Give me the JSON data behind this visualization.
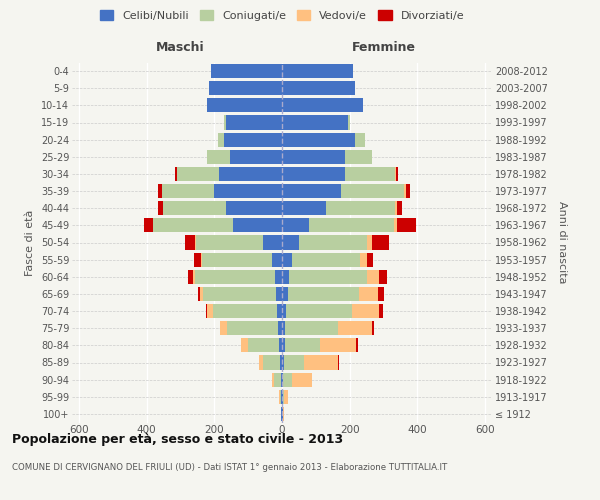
{
  "age_groups": [
    "100+",
    "95-99",
    "90-94",
    "85-89",
    "80-84",
    "75-79",
    "70-74",
    "65-69",
    "60-64",
    "55-59",
    "50-54",
    "45-49",
    "40-44",
    "35-39",
    "30-34",
    "25-29",
    "20-24",
    "15-19",
    "10-14",
    "5-9",
    "0-4"
  ],
  "birth_years": [
    "≤ 1912",
    "1913-1917",
    "1918-1922",
    "1923-1927",
    "1928-1932",
    "1933-1937",
    "1938-1942",
    "1943-1947",
    "1948-1952",
    "1953-1957",
    "1958-1962",
    "1963-1967",
    "1968-1972",
    "1973-1977",
    "1978-1982",
    "1983-1987",
    "1988-1992",
    "1993-1997",
    "1998-2002",
    "2003-2007",
    "2008-2012"
  ],
  "males": {
    "celibi": [
      2,
      2,
      4,
      6,
      10,
      12,
      15,
      18,
      22,
      30,
      55,
      145,
      165,
      200,
      185,
      155,
      170,
      165,
      220,
      215,
      210
    ],
    "coniugati": [
      2,
      5,
      20,
      50,
      90,
      150,
      190,
      215,
      235,
      205,
      200,
      235,
      185,
      155,
      125,
      65,
      20,
      5,
      0,
      0,
      0
    ],
    "vedovi": [
      0,
      2,
      5,
      12,
      20,
      20,
      15,
      8,
      5,
      5,
      2,
      2,
      0,
      0,
      0,
      0,
      0,
      0,
      0,
      0,
      0
    ],
    "divorziati": [
      0,
      0,
      0,
      0,
      2,
      2,
      5,
      8,
      15,
      20,
      30,
      25,
      15,
      10,
      5,
      0,
      0,
      0,
      0,
      0,
      0
    ]
  },
  "females": {
    "nubili": [
      2,
      2,
      4,
      6,
      8,
      10,
      12,
      18,
      22,
      30,
      50,
      80,
      130,
      175,
      185,
      185,
      215,
      195,
      240,
      215,
      210
    ],
    "coniugate": [
      2,
      5,
      25,
      60,
      105,
      155,
      195,
      210,
      230,
      200,
      200,
      250,
      205,
      185,
      150,
      80,
      30,
      5,
      0,
      0,
      0
    ],
    "vedove": [
      1,
      10,
      60,
      100,
      105,
      100,
      80,
      55,
      35,
      20,
      15,
      10,
      5,
      5,
      2,
      0,
      0,
      0,
      0,
      0,
      0
    ],
    "divorziate": [
      0,
      0,
      0,
      2,
      5,
      8,
      10,
      18,
      22,
      18,
      50,
      55,
      15,
      12,
      5,
      0,
      0,
      0,
      0,
      0,
      0
    ]
  },
  "colors": {
    "celibi": "#4472c4",
    "coniugati": "#b8cfa0",
    "vedovi": "#ffc080",
    "divorziati": "#cc0000"
  },
  "xlim": 620,
  "title": "Popolazione per età, sesso e stato civile - 2013",
  "subtitle": "COMUNE DI CERVIGNANO DEL FRIULI (UD) - Dati ISTAT 1° gennaio 2013 - Elaborazione TUTTITALIA.IT",
  "xlabel_left": "Maschi",
  "xlabel_right": "Femmine",
  "ylabel": "Fasce di età",
  "ylabel_right": "Anni di nascita",
  "legend_labels": [
    "Celibi/Nubili",
    "Coniugati/e",
    "Vedovi/e",
    "Divorziati/e"
  ],
  "bg_color": "#f5f5f0",
  "plot_bg_color": "#f5f5f0"
}
